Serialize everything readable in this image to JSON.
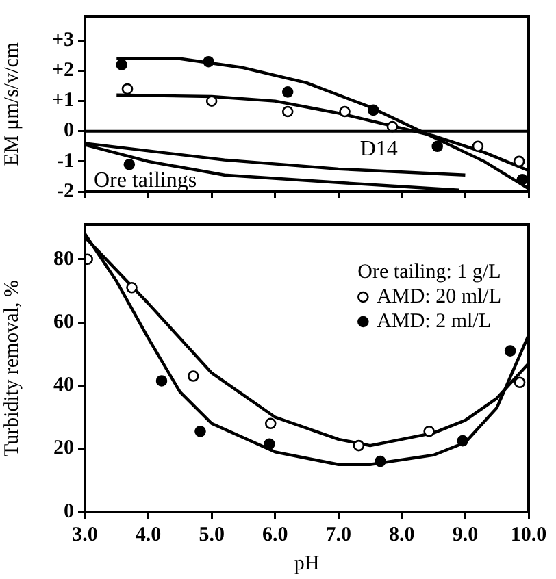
{
  "chart_data": [
    {
      "type": "scatter",
      "ylabel": "EM μm/s/v/cm",
      "xlim": [
        3.0,
        10.0
      ],
      "xticks": [
        3,
        4,
        5,
        6,
        7,
        8,
        9,
        10
      ],
      "ylim": [
        -2,
        3.8
      ],
      "yticks": [
        {
          "value": 3,
          "label": "+3"
        },
        {
          "value": 2,
          "label": "+2"
        },
        {
          "value": 1,
          "label": "+1"
        },
        0,
        -1,
        -2
      ],
      "tick_labels": "y",
      "legend": false,
      "marker": "circle",
      "series": [
        {
          "type": "scatter",
          "color": "#000000",
          "x": [
            3.58,
            4.95,
            6.2,
            7.55,
            8.56,
            9.9
          ],
          "values": [
            2.2,
            2.3,
            1.3,
            0.7,
            -0.5,
            -1.6
          ]
        },
        {
          "type": "scatter",
          "color": "#ffffff",
          "x": [
            3.67,
            5.0,
            6.2,
            7.1,
            7.85,
            9.2,
            9.85
          ],
          "values": [
            1.4,
            1.0,
            0.65,
            0.65,
            0.15,
            -0.5,
            -1.0
          ]
        },
        {
          "type": "scatter",
          "color": "#000000",
          "x": [
            3.7
          ],
          "values": [
            -1.1
          ]
        },
        {
          "type": "line",
          "marker": "none",
          "color": "#000000",
          "x": [
            3.5,
            4.5,
            5.5,
            6.5,
            7.5,
            8.5,
            9.3,
            10.0
          ],
          "values": [
            2.4,
            2.4,
            2.1,
            1.6,
            0.8,
            -0.2,
            -1.0,
            -1.9
          ]
        },
        {
          "type": "line",
          "marker": "none",
          "color": "#000000",
          "x": [
            3.5,
            5.0,
            6.0,
            7.0,
            8.0,
            8.5,
            9.3,
            10.0
          ],
          "values": [
            1.2,
            1.15,
            1.0,
            0.6,
            0.1,
            -0.15,
            -0.7,
            -1.3
          ]
        },
        {
          "type": "line",
          "marker": "none",
          "color": "#000000",
          "x": [
            3.0,
            5.2,
            7.0,
            9.0
          ],
          "values": [
            -0.4,
            -0.95,
            -1.25,
            -1.45
          ]
        },
        {
          "type": "line",
          "marker": "none",
          "color": "#000000",
          "x": [
            3.0,
            4.0,
            5.2,
            7.0,
            8.9
          ],
          "values": [
            -0.45,
            -1.0,
            -1.45,
            -1.7,
            -1.95
          ]
        }
      ],
      "ref_lines": [
        {
          "axis": "y",
          "value": 0
        }
      ],
      "annotations": [
        "D14",
        "Ore tailings"
      ]
    },
    {
      "type": "scatter",
      "xlabel": "pH",
      "ylabel": "Turbidity removal, %",
      "xlim": [
        3.0,
        10.0
      ],
      "xticks": [
        {
          "value": 3,
          "label": "3.0"
        },
        {
          "value": 4,
          "label": "4.0"
        },
        {
          "value": 5,
          "label": "5.0"
        },
        {
          "value": 6,
          "label": "6.0"
        },
        {
          "value": 7,
          "label": "7.0"
        },
        {
          "value": 8,
          "label": "8.0"
        },
        {
          "value": 9,
          "label": "9.0"
        },
        {
          "value": 10,
          "label": "10.0"
        }
      ],
      "ylim": [
        0,
        91
      ],
      "yticks": [
        0,
        20,
        40,
        60,
        80
      ],
      "legend": "top right",
      "legend_title": "Ore tailing: 1 g/L",
      "marker": "circle",
      "series": [
        {
          "type": "scatter",
          "name": "AMD: 20 ml/L",
          "color": "#ffffff",
          "x": [
            3.04,
            3.74,
            4.71,
            5.93,
            7.32,
            8.43,
            9.86
          ],
          "values": [
            80,
            71,
            43,
            28,
            21,
            25.5,
            41
          ]
        },
        {
          "type": "scatter",
          "name": "AMD: 2 ml/L",
          "color": "#000000",
          "x": [
            4.21,
            4.82,
            5.91,
            7.66,
            8.96,
            9.71
          ],
          "values": [
            41.5,
            25.5,
            21.5,
            16,
            22.5,
            51
          ]
        },
        {
          "type": "line",
          "marker": "none",
          "color": "#000000",
          "x": [
            3.0,
            4.0,
            5.0,
            6.0,
            7.0,
            7.5,
            8.5,
            9.0,
            9.5,
            10.0
          ],
          "values": [
            87,
            66,
            44,
            30,
            23,
            21,
            25,
            29,
            36,
            47
          ]
        },
        {
          "type": "line",
          "marker": "none",
          "color": "#000000",
          "x": [
            3.0,
            3.5,
            4.0,
            4.5,
            5.0,
            6.0,
            7.0,
            7.5,
            8.5,
            9.0,
            9.5,
            10.0
          ],
          "values": [
            88,
            73,
            55,
            38,
            28,
            19,
            15,
            15,
            18,
            22,
            33,
            56
          ]
        }
      ]
    }
  ]
}
